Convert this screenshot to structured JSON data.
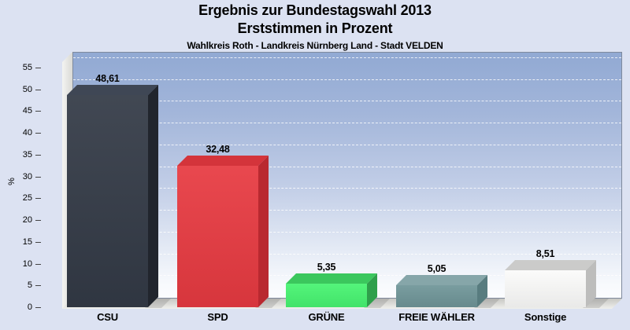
{
  "chart_data": {
    "type": "bar",
    "title_lines": [
      "Ergebnis zur Bundestagswahl 2013",
      "Erststimmen in Prozent"
    ],
    "subtitle": "Wahlkreis Roth - Landkreis Nürnberg Land - Stadt VELDEN",
    "categories": [
      "CSU",
      "SPD",
      "GRÜNE",
      "FREIE WÄHLER",
      "Sonstige"
    ],
    "values": [
      48.61,
      32.48,
      5.35,
      5.05,
      8.51
    ],
    "value_labels": [
      "48,61",
      "32,48",
      "5,35",
      "5,05",
      "8,51"
    ],
    "axis": {
      "ylabel": "%",
      "ylim": [
        0,
        55
      ],
      "ytick_step": 5,
      "yticks": [
        0,
        5,
        10,
        15,
        20,
        25,
        30,
        35,
        40,
        45,
        50,
        55
      ]
    },
    "grid": "horizontal-dashed",
    "legend": "none",
    "projection": "3d-oblique",
    "bars": [
      {
        "label": "CSU",
        "value": 48.61,
        "value_label": "48,61",
        "colors": {
          "top": "#3f4755",
          "front": "#333a46",
          "side": "#21252d"
        }
      },
      {
        "label": "SPD",
        "value": 32.48,
        "value_label": "32,48",
        "colors": {
          "top": "#d4343b",
          "front": "#e73a41",
          "side": "#b92930"
        }
      },
      {
        "label": "GRÜNE",
        "value": 5.35,
        "value_label": "5,35",
        "colors": {
          "top": "#3bc75d",
          "front": "#47f471",
          "side": "#2f9f4b"
        }
      },
      {
        "label": "FREIE WÄHLER",
        "value": 5.05,
        "value_label": "5,05",
        "colors": {
          "top": "#86a6a9",
          "front": "#6f9598",
          "side": "#587c7f"
        }
      },
      {
        "label": "Sonstige",
        "value": 8.51,
        "value_label": "8,51",
        "colors": {
          "top": "#cbcbca",
          "front": "#fbfbfa",
          "side": "#bdbdbc"
        }
      }
    ],
    "scene_colors": {
      "page_background": "#dce2f2",
      "plot_gradient_top": "#91a9d3",
      "plot_gradient_bottom": "#fbfcfe",
      "plot_border": "#7f8a9d",
      "wall": "#e9e9e5",
      "floor": "#dededa",
      "gridline": "#e8ebf0",
      "text": "#000000"
    }
  }
}
